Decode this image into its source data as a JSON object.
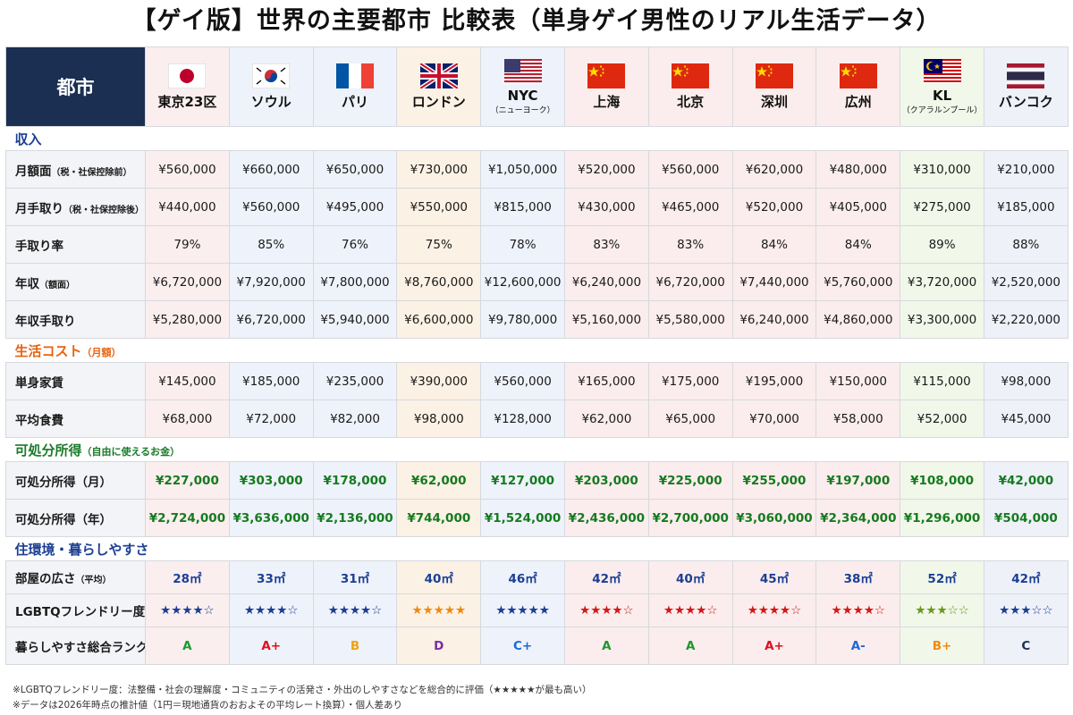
{
  "title": "【ゲイ版】世界の主要都市 比較表（単身ゲイ男性のリアル生活データ）",
  "header_label": "都市",
  "cities": [
    {
      "name": "東京23区",
      "sub": "",
      "flag": "jp",
      "tint": "jp",
      "rank_color": "#1a9a2e",
      "star_color": "#1c3f94",
      "area_color": "#1c3f94"
    },
    {
      "name": "ソウル",
      "sub": "",
      "flag": "kr",
      "tint": "kr",
      "rank_color": "#e0101e",
      "star_color": "#1c3f94",
      "area_color": "#1c3f94"
    },
    {
      "name": "パリ",
      "sub": "",
      "flag": "fr",
      "tint": "fr",
      "rank_color": "#f0a20f",
      "star_color": "#1c3f94",
      "area_color": "#1c3f94"
    },
    {
      "name": "ロンドン",
      "sub": "",
      "flag": "uk",
      "tint": "uk",
      "rank_color": "#7a2aa6",
      "star_color": "#f08a10",
      "area_color": "#1c3f94"
    },
    {
      "name": "NYC",
      "sub": "（ニューヨーク）",
      "flag": "us",
      "tint": "us",
      "rank_color": "#1a6ad6",
      "star_color": "#1c3f94",
      "area_color": "#1c3f94"
    },
    {
      "name": "上海",
      "sub": "",
      "flag": "cn",
      "tint": "cn",
      "rank_color": "#1a9a2e",
      "star_color": "#d41818",
      "area_color": "#1c3f94"
    },
    {
      "name": "北京",
      "sub": "",
      "flag": "cn",
      "tint": "cn",
      "rank_color": "#1a9a2e",
      "star_color": "#d41818",
      "area_color": "#1c3f94"
    },
    {
      "name": "深圳",
      "sub": "",
      "flag": "cn",
      "tint": "cn",
      "rank_color": "#e0101e",
      "star_color": "#d41818",
      "area_color": "#1c3f94"
    },
    {
      "name": "広州",
      "sub": "",
      "flag": "cn",
      "tint": "cn",
      "rank_color": "#1a6ad6",
      "star_color": "#d41818",
      "area_color": "#1c3f94"
    },
    {
      "name": "KL",
      "sub": "（クアラルンプール）",
      "flag": "my",
      "tint": "my",
      "rank_color": "#f08a10",
      "star_color": "#6a9a1a",
      "area_color": "#1c3f94"
    },
    {
      "name": "バンコク",
      "sub": "",
      "flag": "th",
      "tint": "th",
      "rank_color": "#1b2f52",
      "star_color": "#1c3f94",
      "area_color": "#1c3f94"
    }
  ],
  "sections": [
    {
      "title": "収入",
      "title_small": "",
      "style": "blue",
      "rows": [
        {
          "label": "月額面",
          "label_small": "（税・社保控除前）",
          "green": false,
          "values": [
            "¥560,000",
            "¥660,000",
            "¥650,000",
            "¥730,000",
            "¥1,050,000",
            "¥520,000",
            "¥560,000",
            "¥620,000",
            "¥480,000",
            "¥310,000",
            "¥210,000"
          ]
        },
        {
          "label": "月手取り",
          "label_small": "（税・社保控除後）",
          "green": false,
          "values": [
            "¥440,000",
            "¥560,000",
            "¥495,000",
            "¥550,000",
            "¥815,000",
            "¥430,000",
            "¥465,000",
            "¥520,000",
            "¥405,000",
            "¥275,000",
            "¥185,000"
          ]
        },
        {
          "label": "手取り率",
          "label_small": "",
          "green": false,
          "values": [
            "79%",
            "85%",
            "76%",
            "75%",
            "78%",
            "83%",
            "83%",
            "84%",
            "84%",
            "89%",
            "88%"
          ]
        },
        {
          "label": "年収",
          "label_small": "（額面）",
          "green": false,
          "values": [
            "¥6,720,000",
            "¥7,920,000",
            "¥7,800,000",
            "¥8,760,000",
            "¥12,600,000",
            "¥6,240,000",
            "¥6,720,000",
            "¥7,440,000",
            "¥5,760,000",
            "¥3,720,000",
            "¥2,520,000"
          ]
        },
        {
          "label": "年収手取り",
          "label_small": "",
          "green": false,
          "values": [
            "¥5,280,000",
            "¥6,720,000",
            "¥5,940,000",
            "¥6,600,000",
            "¥9,780,000",
            "¥5,160,000",
            "¥5,580,000",
            "¥6,240,000",
            "¥4,860,000",
            "¥3,300,000",
            "¥2,220,000"
          ]
        }
      ]
    },
    {
      "title": "生活コスト",
      "title_small": "（月額）",
      "style": "orange",
      "rows": [
        {
          "label": "単身家賃",
          "label_small": "",
          "green": false,
          "values": [
            "¥145,000",
            "¥185,000",
            "¥235,000",
            "¥390,000",
            "¥560,000",
            "¥165,000",
            "¥175,000",
            "¥195,000",
            "¥150,000",
            "¥115,000",
            "¥98,000"
          ]
        },
        {
          "label": "平均食費",
          "label_small": "",
          "green": false,
          "values": [
            "¥68,000",
            "¥72,000",
            "¥82,000",
            "¥98,000",
            "¥128,000",
            "¥62,000",
            "¥65,000",
            "¥70,000",
            "¥58,000",
            "¥52,000",
            "¥45,000"
          ]
        }
      ]
    },
    {
      "title": "可処分所得",
      "title_small": "（自由に使えるお金）",
      "style": "green",
      "rows": [
        {
          "label": "可処分所得（月）",
          "label_small": "",
          "green": true,
          "values": [
            "¥227,000",
            "¥303,000",
            "¥178,000",
            "¥62,000",
            "¥127,000",
            "¥203,000",
            "¥225,000",
            "¥255,000",
            "¥197,000",
            "¥108,000",
            "¥42,000"
          ]
        },
        {
          "label": "可処分所得（年）",
          "label_small": "",
          "green": true,
          "values": [
            "¥2,724,000",
            "¥3,636,000",
            "¥2,136,000",
            "¥744,000",
            "¥1,524,000",
            "¥2,436,000",
            "¥2,700,000",
            "¥3,060,000",
            "¥2,364,000",
            "¥1,296,000",
            "¥504,000"
          ]
        }
      ]
    }
  ],
  "living": {
    "title": "住環境・暮らしやすさ",
    "area_label": "部屋の広さ",
    "area_label_small": "（平均）",
    "area_values": [
      "28㎡",
      "33㎡",
      "31㎡",
      "40㎡",
      "46㎡",
      "42㎡",
      "40㎡",
      "45㎡",
      "38㎡",
      "52㎡",
      "42㎡"
    ],
    "lgbtq_label": "LGBTQフレンドリー度※",
    "lgbtq_stars": [
      "★★★★☆",
      "★★★★☆",
      "★★★★☆",
      "★★★★★",
      "★★★★★",
      "★★★★☆",
      "★★★★☆",
      "★★★★☆",
      "★★★★☆",
      "★★★☆☆",
      "★★★☆☆"
    ],
    "rank_label": "暮らしやすさ総合ランク",
    "ranks": [
      "A",
      "A+",
      "B",
      "D",
      "C+",
      "A",
      "A",
      "A+",
      "A-",
      "B+",
      "C"
    ]
  },
  "notes": [
    "※LGBTQフレンドリー度：法整備・社会の理解度・コミュニティの活発さ・外出のしやすさなどを総合的に評価（★★★★★が最も高い）",
    "※データは2026年時点の推計値（1円＝現地通貨のおおよその平均レート換算）・個人差あり"
  ]
}
